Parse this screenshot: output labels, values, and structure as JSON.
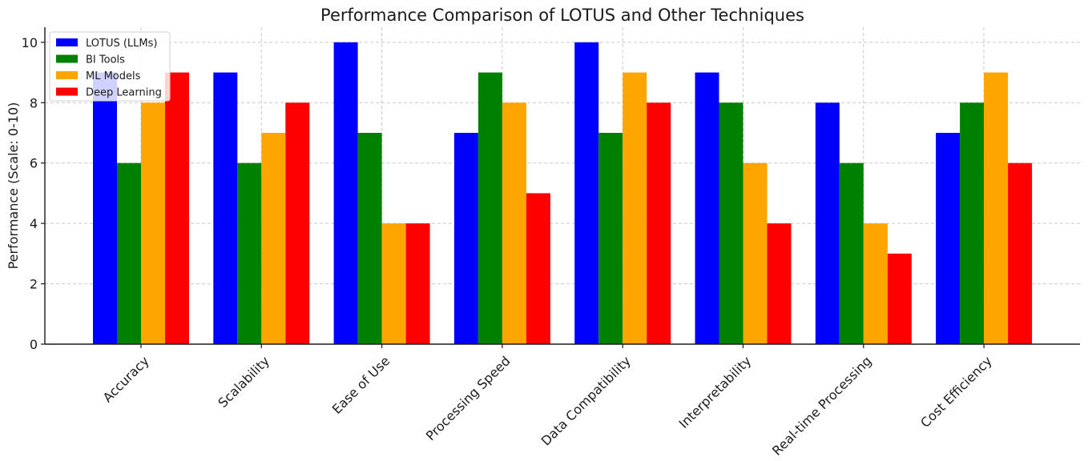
{
  "chart_data": {
    "type": "bar",
    "title": "Performance Comparison of LOTUS and Other Techniques",
    "xlabel": "",
    "ylabel": "Performance (Scale: 0-10)",
    "ylim": [
      0,
      10.5
    ],
    "yticks": [
      0,
      2,
      4,
      6,
      8,
      10
    ],
    "grid": true,
    "legend_position": "top-left",
    "categories": [
      "Accuracy",
      "Scalability",
      "Ease of Use",
      "Processing Speed",
      "Data Compatibility",
      "Interpretability",
      "Real-time Processing",
      "Cost Efficiency"
    ],
    "series": [
      {
        "name": "LOTUS (LLMs)",
        "color": "#0000ff",
        "values": [
          9,
          9,
          10,
          7,
          10,
          9,
          8,
          7
        ]
      },
      {
        "name": "BI Tools",
        "color": "#008000",
        "values": [
          6,
          6,
          7,
          9,
          7,
          8,
          6,
          8
        ]
      },
      {
        "name": "ML Models",
        "color": "#ffa500",
        "values": [
          8,
          7,
          4,
          8,
          9,
          6,
          4,
          9
        ]
      },
      {
        "name": "Deep Learning",
        "color": "#ff0000",
        "values": [
          9,
          8,
          4,
          5,
          8,
          4,
          3,
          6
        ]
      }
    ]
  }
}
